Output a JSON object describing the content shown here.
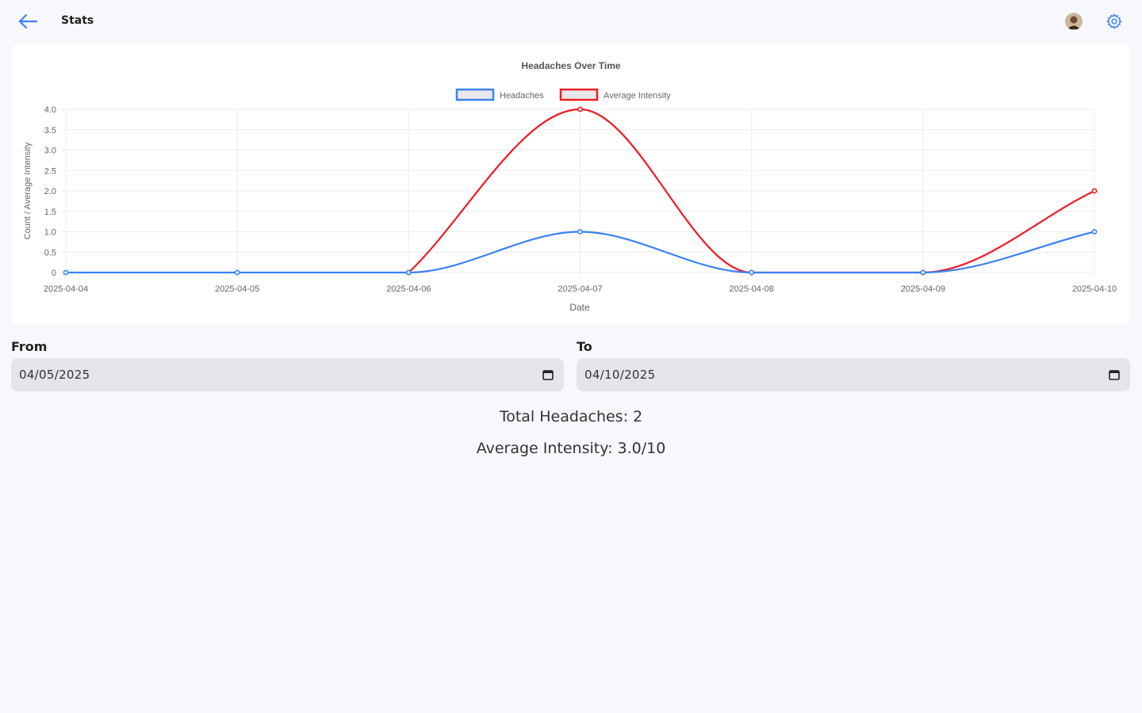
{
  "header": {
    "title": "Stats",
    "back_icon": "arrow-left-icon",
    "settings_icon": "gear-icon",
    "accent": "#3b82f6"
  },
  "filters": {
    "from_label": "From",
    "from_value": "04/05/2025",
    "to_label": "To",
    "to_value": "04/10/2025"
  },
  "summary": {
    "total_label": "Total Headaches:",
    "total_value": "2",
    "avg_label": "Average Intensity:",
    "avg_value": "3.0/10"
  },
  "chart_data": {
    "type": "line",
    "title": "Headaches Over Time",
    "xlabel": "Date",
    "ylabel": "Count / Average Intensity",
    "categories": [
      "2025-04-04",
      "2025-04-05",
      "2025-04-06",
      "2025-04-07",
      "2025-04-08",
      "2025-04-09",
      "2025-04-10"
    ],
    "ylim": [
      0,
      4
    ],
    "yticks": [
      "0",
      "0.5",
      "1.0",
      "1.5",
      "2.0",
      "2.5",
      "3.0",
      "3.5",
      "4.0"
    ],
    "grid": true,
    "legend_position": "top",
    "series": [
      {
        "name": "Headaches",
        "color": "#3b82f6",
        "values": [
          0,
          0,
          0,
          1,
          0,
          0,
          1
        ]
      },
      {
        "name": "Average Intensity",
        "color": "#ef1c24",
        "values": [
          null,
          null,
          0,
          4,
          0,
          0,
          2
        ]
      }
    ]
  }
}
